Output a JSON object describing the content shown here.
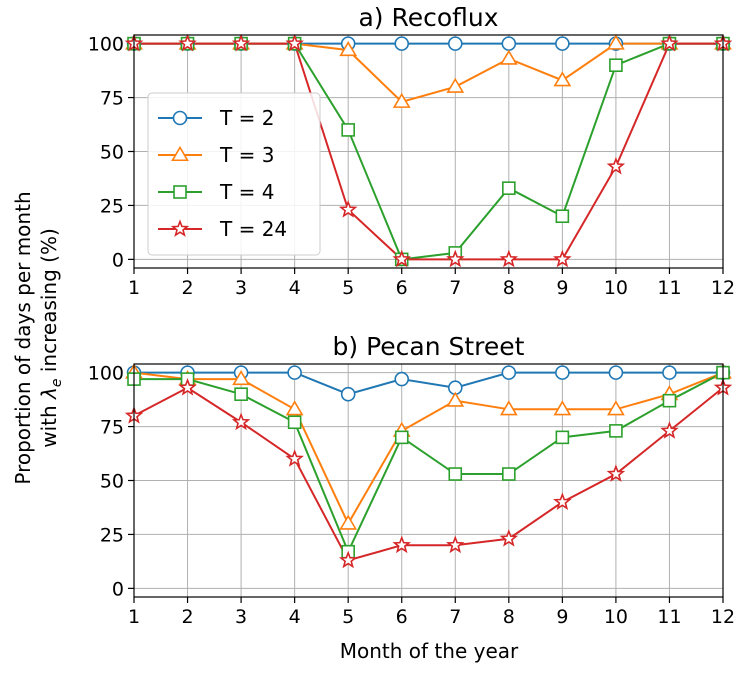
{
  "figure": {
    "ylabel_line1": "Proportion of days per month",
    "ylabel_line2_prefix": "with ",
    "ylabel_lambda": "λ",
    "ylabel_subscript": "e",
    "ylabel_line2_suffix": " increasing (%)",
    "xlabel": "Month of the year"
  },
  "legend": {
    "entries": [
      {
        "label": "T = 2",
        "color": "#1f77b4",
        "marker": "circle"
      },
      {
        "label": "T = 3",
        "color": "#ff7f0e",
        "marker": "triangle"
      },
      {
        "label": "T = 4",
        "color": "#2ca02c",
        "marker": "square"
      },
      {
        "label": "T = 24",
        "color": "#d62728",
        "marker": "star"
      }
    ]
  },
  "chart_data": [
    {
      "type": "line",
      "title": "a) Recoflux",
      "xlabel": "",
      "ylabel": "",
      "x": [
        1,
        2,
        3,
        4,
        5,
        6,
        7,
        8,
        9,
        10,
        11,
        12
      ],
      "xlim": [
        1,
        12
      ],
      "ylim": [
        -4,
        104
      ],
      "xticks": [
        "1",
        "2",
        "3",
        "4",
        "5",
        "6",
        "7",
        "8",
        "9",
        "10",
        "11",
        "12"
      ],
      "yticks": [
        "0",
        "25",
        "50",
        "75",
        "100"
      ],
      "grid": true,
      "legend_position": "center-left",
      "series": [
        {
          "name": "T = 2",
          "color": "#1f77b4",
          "marker": "circle",
          "values": [
            100,
            100,
            100,
            100,
            100,
            100,
            100,
            100,
            100,
            100,
            100,
            100
          ]
        },
        {
          "name": "T = 3",
          "color": "#ff7f0e",
          "marker": "triangle",
          "values": [
            100,
            100,
            100,
            100,
            97,
            73,
            80,
            93,
            83,
            100,
            100,
            100
          ]
        },
        {
          "name": "T = 4",
          "color": "#2ca02c",
          "marker": "square",
          "values": [
            100,
            100,
            100,
            100,
            60,
            0,
            3,
            33,
            20,
            90,
            100,
            100
          ]
        },
        {
          "name": "T = 24",
          "color": "#d62728",
          "marker": "star",
          "values": [
            100,
            100,
            100,
            100,
            23,
            0,
            0,
            0,
            0,
            43,
            100,
            100
          ]
        }
      ]
    },
    {
      "type": "line",
      "title": "b) Pecan Street",
      "xlabel": "Month of the year",
      "ylabel": "",
      "x": [
        1,
        2,
        3,
        4,
        5,
        6,
        7,
        8,
        9,
        10,
        11,
        12
      ],
      "xlim": [
        1,
        12
      ],
      "ylim": [
        -4,
        104
      ],
      "xticks": [
        "1",
        "2",
        "3",
        "4",
        "5",
        "6",
        "7",
        "8",
        "9",
        "10",
        "11",
        "12"
      ],
      "yticks": [
        "0",
        "25",
        "50",
        "75",
        "100"
      ],
      "grid": true,
      "series": [
        {
          "name": "T = 2",
          "color": "#1f77b4",
          "marker": "circle",
          "values": [
            100,
            100,
            100,
            100,
            90,
            97,
            93,
            100,
            100,
            100,
            100,
            100
          ]
        },
        {
          "name": "T = 3",
          "color": "#ff7f0e",
          "marker": "triangle",
          "values": [
            100,
            97,
            97,
            83,
            30,
            73,
            87,
            83,
            83,
            83,
            90,
            100
          ]
        },
        {
          "name": "T = 4",
          "color": "#2ca02c",
          "marker": "square",
          "values": [
            97,
            97,
            90,
            77,
            17,
            70,
            53,
            53,
            70,
            73,
            87,
            100
          ]
        },
        {
          "name": "T = 24",
          "color": "#d62728",
          "marker": "star",
          "values": [
            80,
            93,
            77,
            60,
            13,
            20,
            20,
            23,
            40,
            53,
            73,
            93
          ]
        }
      ]
    }
  ]
}
